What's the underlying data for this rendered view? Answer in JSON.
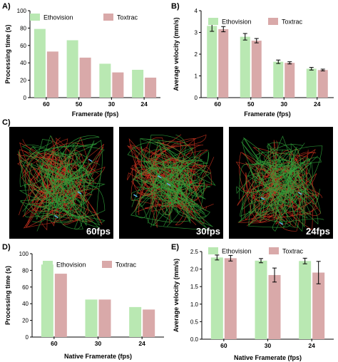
{
  "colors": {
    "ethovision": "#b9e8b2",
    "toxtrac": "#d9a9a9",
    "axis": "#000000",
    "track_red": "#c8321e",
    "track_green": "#2fa03a",
    "track_cyan": "#5ab4e6"
  },
  "panel_letters": {
    "a": "A)",
    "b": "B)",
    "c": "C)",
    "d": "D)",
    "e": "E)"
  },
  "panel_c": {
    "labels": [
      "60fps",
      "30fps",
      "24fps"
    ]
  },
  "chart_data": [
    {
      "id": "A",
      "type": "bar",
      "categories": [
        "60",
        "50",
        "30",
        "24"
      ],
      "series": [
        {
          "name": "Ethovision",
          "values": [
            79,
            66,
            39,
            32
          ]
        },
        {
          "name": "Toxtrac",
          "values": [
            53,
            46,
            29,
            23
          ]
        }
      ],
      "xlabel": "Framerate (fps)",
      "ylabel": "Processing time (s)",
      "ylim": [
        0,
        100
      ],
      "yticks": [
        "0",
        "20",
        "40",
        "60",
        "80",
        "100"
      ],
      "legend": "top",
      "grid": false
    },
    {
      "id": "B",
      "type": "bar",
      "categories": [
        "60",
        "50",
        "30",
        "24"
      ],
      "series": [
        {
          "name": "Ethovision",
          "values": [
            3.3,
            2.8,
            1.65,
            1.33
          ],
          "errors": [
            0.25,
            0.15,
            0.08,
            0.06
          ]
        },
        {
          "name": "Toxtrac",
          "values": [
            3.15,
            2.62,
            1.6,
            1.27
          ],
          "errors": [
            0.12,
            0.1,
            0.05,
            0.04
          ]
        }
      ],
      "xlabel": "Framerate (fps)",
      "ylabel": "Average velocity (mm/s)",
      "ylim": [
        0,
        4
      ],
      "yticks": [
        "0",
        "1",
        "2",
        "3",
        "4"
      ],
      "legend": "top",
      "grid": false
    },
    {
      "id": "D",
      "type": "bar",
      "categories": [
        "60",
        "30",
        "24"
      ],
      "series": [
        {
          "name": "Ethovision",
          "values": [
            87,
            45,
            36
          ]
        },
        {
          "name": "Toxtrac",
          "values": [
            76,
            45,
            33
          ]
        }
      ],
      "xlabel": "Native Framerate (fps)",
      "ylabel": "Processing time (s)",
      "ylim": [
        0,
        100
      ],
      "yticks": [
        "0",
        "20",
        "40",
        "60",
        "80",
        "100"
      ],
      "legend": "top",
      "grid": false
    },
    {
      "id": "E",
      "type": "bar",
      "categories": [
        "60",
        "30",
        "24"
      ],
      "series": [
        {
          "name": "Ethovision",
          "values": [
            2.33,
            2.24,
            2.23
          ],
          "errors": [
            0.07,
            0.06,
            0.08
          ]
        },
        {
          "name": "Toxtrac",
          "values": [
            2.31,
            1.83,
            1.9
          ],
          "errors": [
            0.08,
            0.2,
            0.32
          ]
        }
      ],
      "xlabel": "Native Framerate (fps)",
      "ylabel": "Average velocity (mm/s)",
      "ylim": [
        0,
        2.5
      ],
      "yticks": [
        "0.0",
        "0.5",
        "1.0",
        "1.5",
        "2.0",
        "2.5"
      ],
      "legend": "top",
      "grid": false
    }
  ]
}
